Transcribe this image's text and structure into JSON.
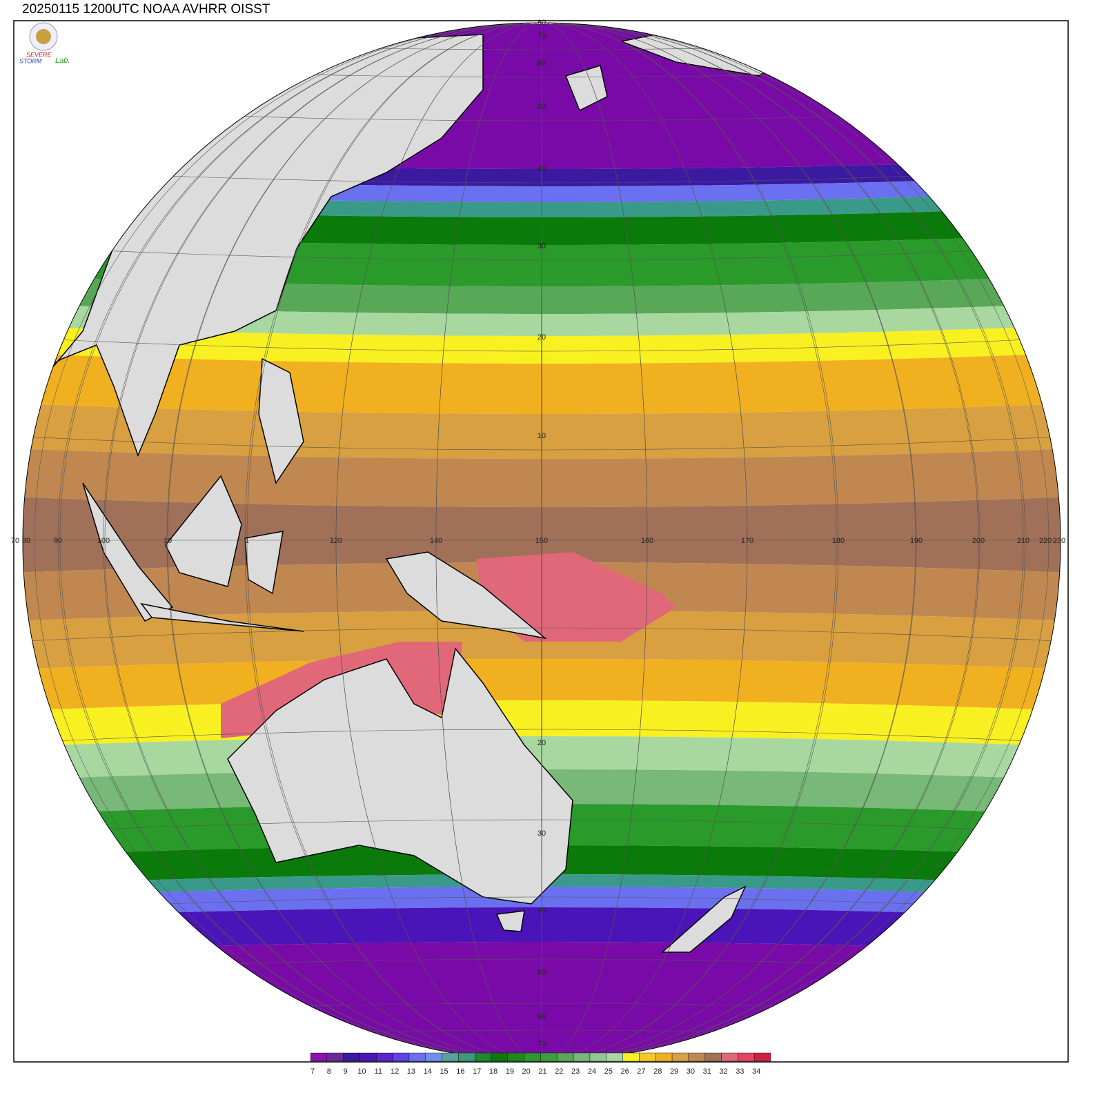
{
  "header": {
    "title": "20250115 1200UTC NOAA AVHRR OISST"
  },
  "logo": {
    "severe": "SEVERE",
    "storm": "STORM",
    "lab": "Lab."
  },
  "map": {
    "lon_labels": [
      "70",
      "80",
      "90",
      "100",
      "10",
      "1",
      "120",
      "140",
      "150",
      "160",
      "170",
      "180",
      "190",
      "200",
      "210",
      "220",
      "230"
    ],
    "lat_labels_north": [
      "80",
      "70",
      "60",
      "50",
      "40",
      "30",
      "20",
      "10"
    ],
    "lat_labels_south": [
      "20",
      "30",
      "40",
      "50",
      "60",
      "70"
    ]
  },
  "colorbar": {
    "values": [
      7,
      8,
      9,
      10,
      11,
      12,
      13,
      14,
      15,
      16,
      17,
      18,
      19,
      20,
      21,
      22,
      23,
      24,
      25,
      26,
      27,
      28,
      29,
      30,
      31,
      32,
      33,
      34
    ],
    "colors": [
      "#8a12b0",
      "#6a2a9a",
      "#3a1aa0",
      "#4a14b8",
      "#5a24d0",
      "#6040e8",
      "#6a70f0",
      "#7090f0",
      "#5aa0a0",
      "#3a9a7a",
      "#1a8a2a",
      "#0a7a0a",
      "#1a8a1a",
      "#2a9a2a",
      "#3aa03a",
      "#58a858",
      "#78b878",
      "#90c890",
      "#a8d8a0",
      "#f8f020",
      "#f8c820",
      "#f0b020",
      "#d8a040",
      "#c08850",
      "#a07058",
      "#e06878",
      "#e84060",
      "#d02040"
    ]
  }
}
